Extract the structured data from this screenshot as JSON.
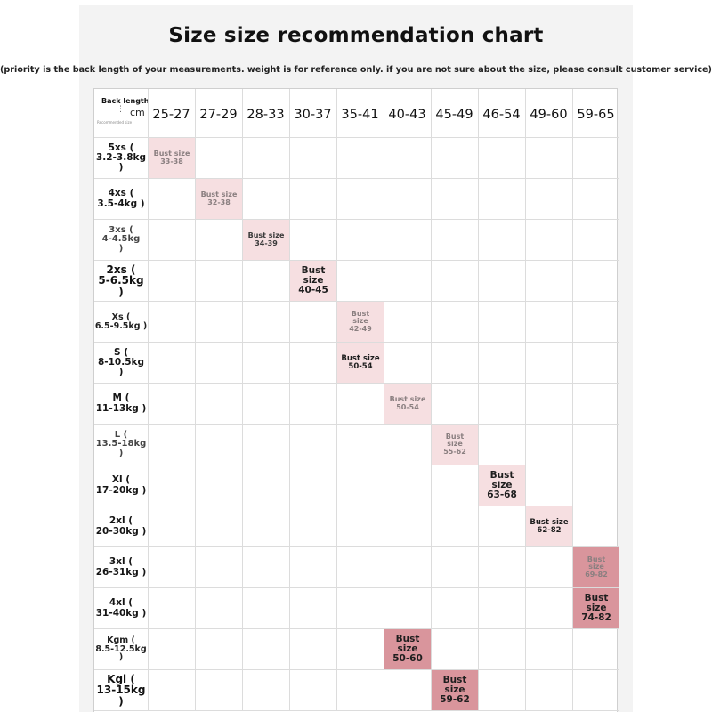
{
  "title": "Size size recommendation chart",
  "subtitle": "(priority is the back length of your measurements. weight is for reference only. if you are not sure about the size, please consult customer service)",
  "chart_data": {
    "type": "table",
    "corner": {
      "top": "Back length",
      "unit": "cm",
      "small": "Recommended size"
    },
    "columns": [
      "25-27",
      "27-29",
      "28-33",
      "30-37",
      "35-41",
      "40-43",
      "45-49",
      "46-54",
      "49-60",
      "59-65"
    ],
    "rows": [
      {
        "size": "5xs (",
        "weight": "3.2-3.8kg )",
        "style": "medium"
      },
      {
        "size": "4xs (",
        "weight": "3.5-4kg )",
        "style": "medium"
      },
      {
        "size": "3xs (",
        "weight": "4-4.5kg",
        "extra": ")",
        "style": "light"
      },
      {
        "size": "2xs (",
        "weight": "5-6.5kg )",
        "style": "bold"
      },
      {
        "size": "Xs (",
        "weight": "6.5-9.5kg )",
        "style": "small"
      },
      {
        "size": "S (",
        "weight": "8-10.5kg )",
        "style": "medium"
      },
      {
        "size": "M (",
        "weight": "11-13kg )",
        "style": "medium"
      },
      {
        "size": "L (",
        "weight": "13.5-18kg )",
        "style": "light"
      },
      {
        "size": "Xl (",
        "weight": "17-20kg )",
        "style": "medium"
      },
      {
        "size": "2xl (",
        "weight": "20-30kg )",
        "style": "medium"
      },
      {
        "size": "3xl (",
        "weight": "26-31kg )",
        "style": "medium"
      },
      {
        "size": "4xl (",
        "weight": "31-40kg )",
        "style": "medium"
      },
      {
        "size": "Kgm (",
        "weight": "8.5-12.5kg",
        "extra": ")",
        "style": "small"
      },
      {
        "size": "Kgl (",
        "weight": "13-15kg )",
        "style": "bold"
      }
    ],
    "cells": [
      {
        "row": 0,
        "col": 0,
        "lines": [
          "Bust size",
          "33-38"
        ],
        "shade": "pale",
        "text": "faint"
      },
      {
        "row": 1,
        "col": 1,
        "lines": [
          "Bust size",
          "32-38"
        ],
        "shade": "pale",
        "text": "faint"
      },
      {
        "row": 2,
        "col": 2,
        "lines": [
          "Bust size",
          "34-39"
        ],
        "shade": "pale",
        "text": "mid"
      },
      {
        "row": 3,
        "col": 3,
        "lines": [
          "Bust",
          "size",
          "40-45"
        ],
        "shade": "pale",
        "text": "dark"
      },
      {
        "row": 4,
        "col": 4,
        "lines": [
          "Bust",
          "size",
          "42-49"
        ],
        "shade": "pale",
        "text": "faint"
      },
      {
        "row": 5,
        "col": 4,
        "lines": [
          "Bust size",
          "50-54"
        ],
        "shade": "pale",
        "text": "dark"
      },
      {
        "row": 6,
        "col": 5,
        "lines": [
          "Bust size",
          "50-54"
        ],
        "shade": "pale",
        "text": "faint"
      },
      {
        "row": 7,
        "col": 6,
        "lines": [
          "Bust",
          "size",
          "55-62"
        ],
        "shade": "pale",
        "text": "faint"
      },
      {
        "row": 8,
        "col": 7,
        "lines": [
          "Bust",
          "size",
          "63-68"
        ],
        "shade": "pale",
        "text": "dark"
      },
      {
        "row": 9,
        "col": 8,
        "lines": [
          "Bust size",
          "62-82"
        ],
        "shade": "pale",
        "text": "dark"
      },
      {
        "row": 10,
        "col": 9,
        "lines": [
          "Bust",
          "size",
          "69-82"
        ],
        "shade": "rose",
        "text": "faint"
      },
      {
        "row": 11,
        "col": 9,
        "lines": [
          "Bust",
          "size",
          "74-82"
        ],
        "shade": "rose",
        "text": "dark"
      },
      {
        "row": 12,
        "col": 5,
        "lines": [
          "Bust",
          "size",
          "50-60"
        ],
        "shade": "rose",
        "text": "dark"
      },
      {
        "row": 13,
        "col": 6,
        "lines": [
          "Bust",
          "size",
          "59-62"
        ],
        "shade": "rose",
        "text": "dark"
      }
    ]
  },
  "colors": {
    "pale": "#f6dfe1",
    "rose": "#d9959c",
    "text_dark": "#1e1e1e",
    "text_mid": "#3a3a3a",
    "text_faint": "#8a7f80"
  }
}
